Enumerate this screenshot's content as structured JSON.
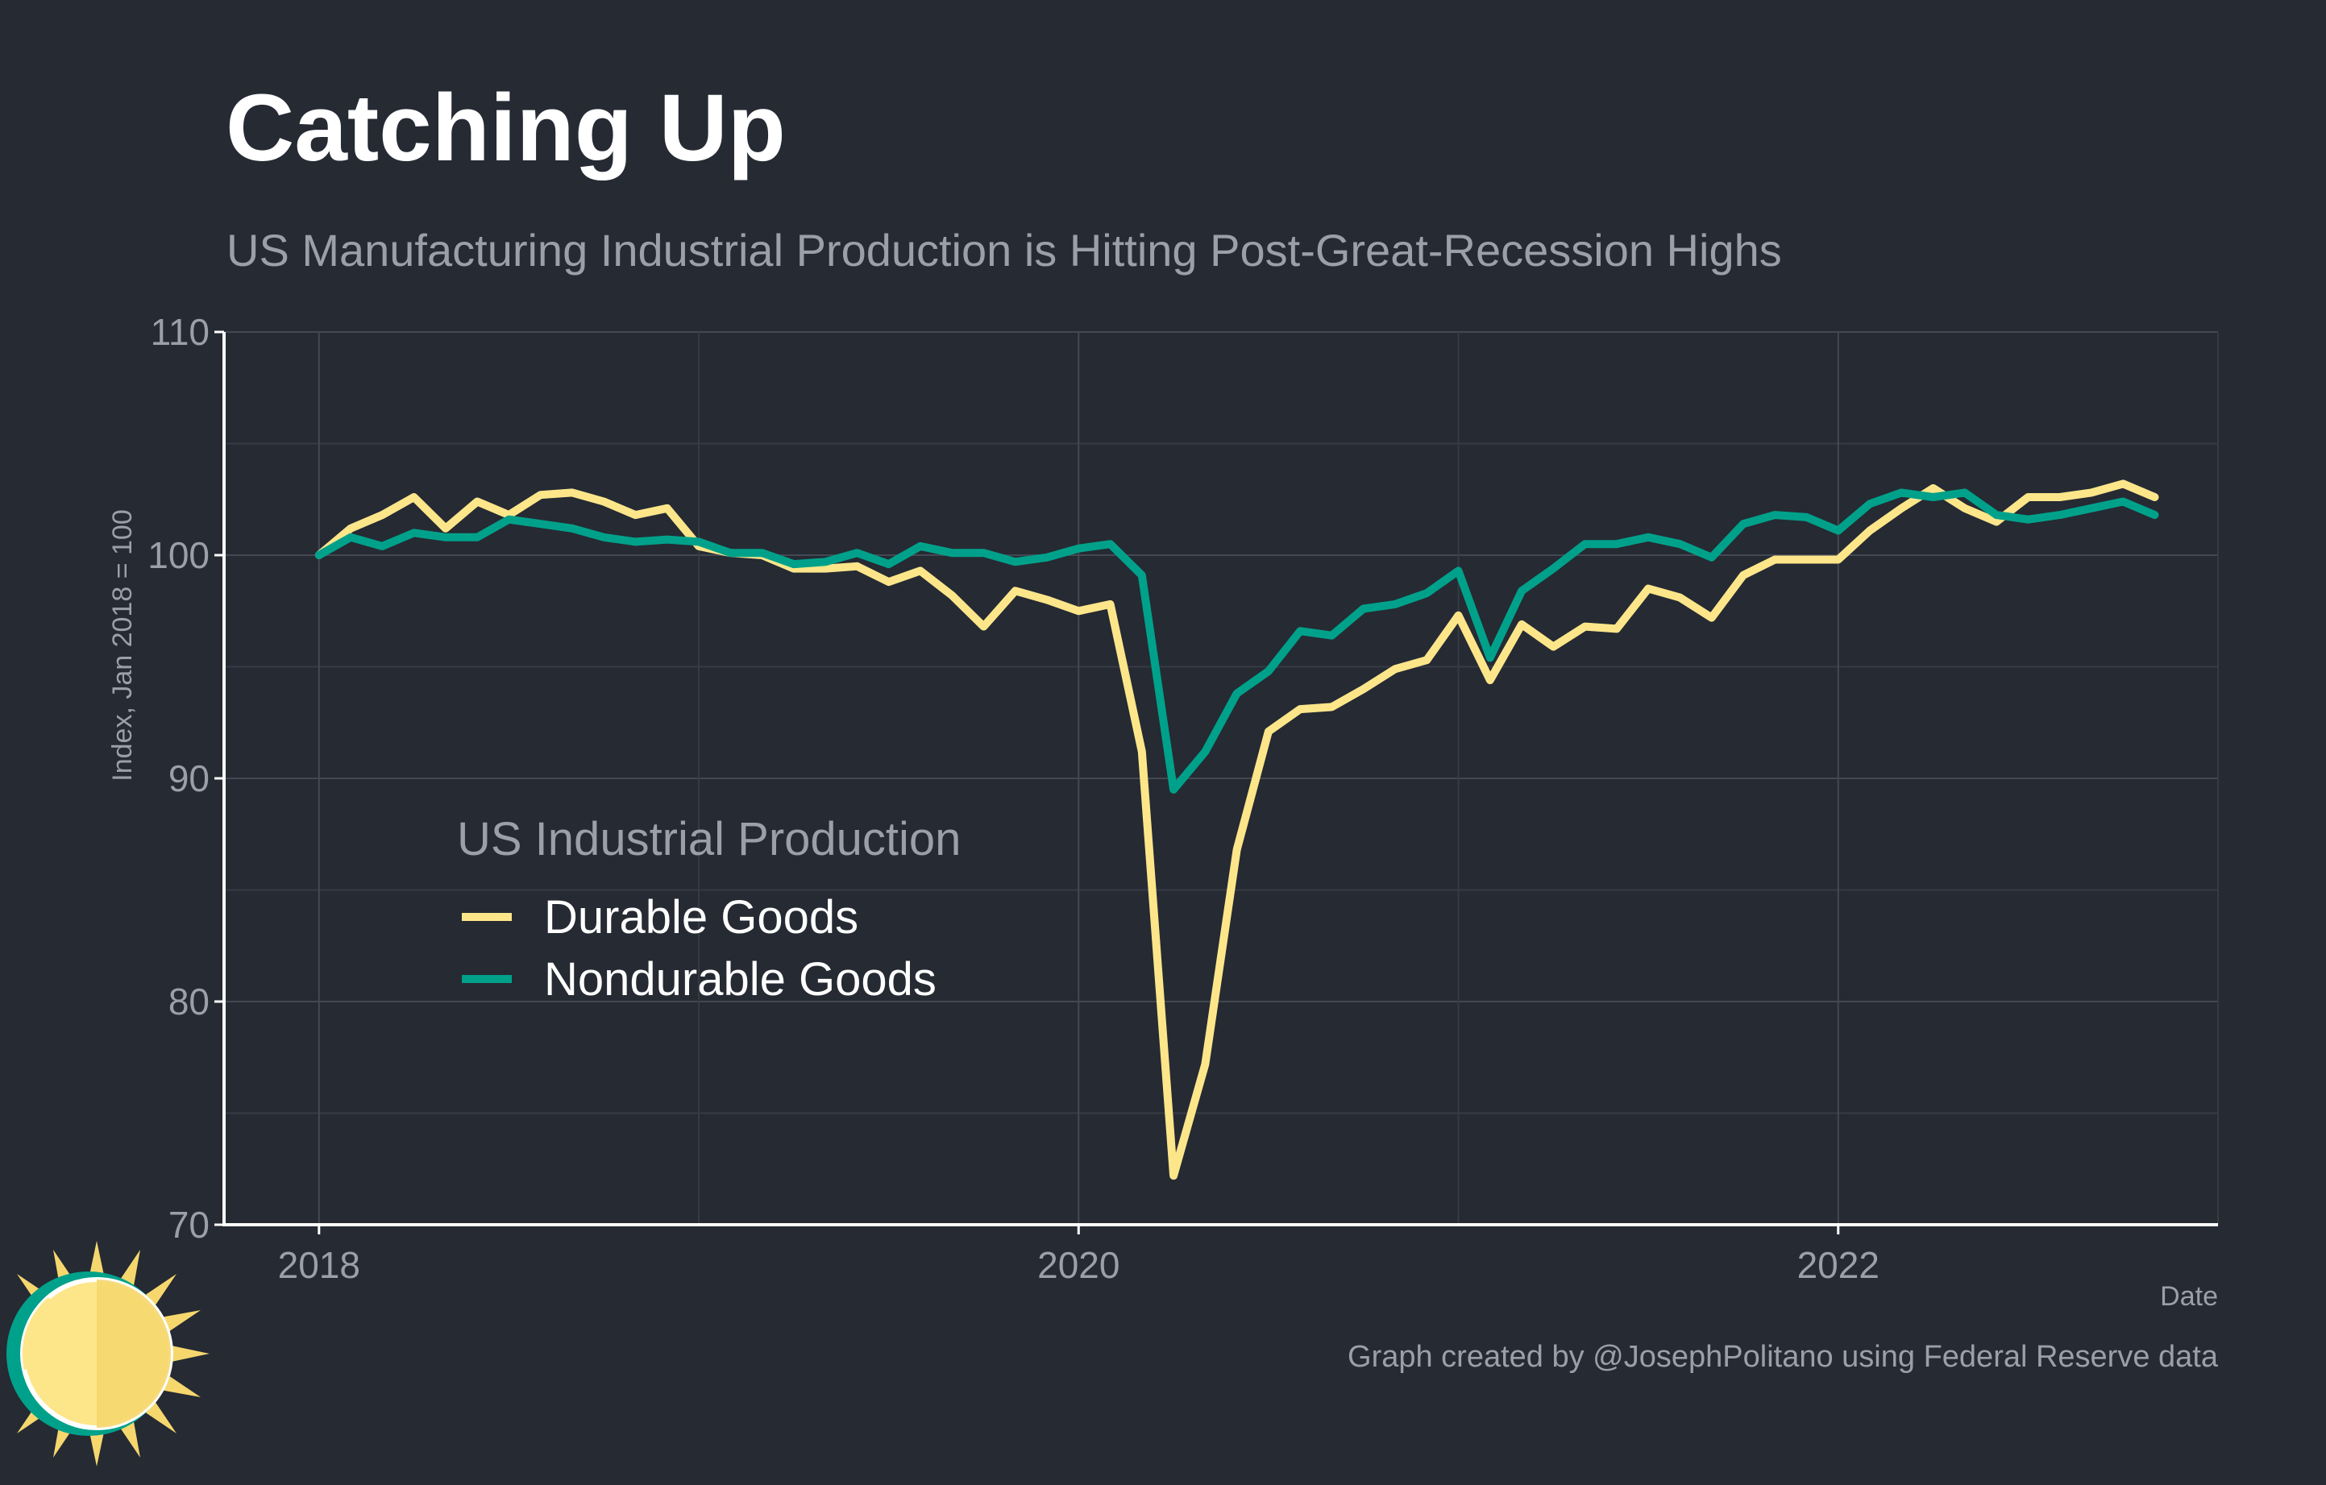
{
  "title": "Catching Up",
  "subtitle": "US Manufacturing Industrial Production is Hitting Post-Great-Recession Highs",
  "caption": "Graph created by @JosephPolitano using Federal Reserve data",
  "colors": {
    "background": "#252a33",
    "durable": "#fde68a",
    "nondurable": "#00a18a",
    "grid": "#3d424b",
    "axis": "#ffffff"
  },
  "chart_data": {
    "type": "line",
    "xlabel": "Date",
    "ylabel": "Index, Jan 2018 = 100",
    "ylim": [
      70,
      110
    ],
    "yticks": [
      70,
      80,
      90,
      100,
      110
    ],
    "xlim": [
      "2017-10",
      "2023-01"
    ],
    "xticks": [
      "2018",
      "2020",
      "2022"
    ],
    "grid": true,
    "legend": {
      "title": "US Industrial Production",
      "position": "lower-left"
    },
    "x": [
      "2018-01",
      "2018-02",
      "2018-03",
      "2018-04",
      "2018-05",
      "2018-06",
      "2018-07",
      "2018-08",
      "2018-09",
      "2018-10",
      "2018-11",
      "2018-12",
      "2019-01",
      "2019-02",
      "2019-03",
      "2019-04",
      "2019-05",
      "2019-06",
      "2019-07",
      "2019-08",
      "2019-09",
      "2019-10",
      "2019-11",
      "2019-12",
      "2020-01",
      "2020-02",
      "2020-03",
      "2020-04",
      "2020-05",
      "2020-06",
      "2020-07",
      "2020-08",
      "2020-09",
      "2020-10",
      "2020-11",
      "2020-12",
      "2021-01",
      "2021-02",
      "2021-03",
      "2021-04",
      "2021-05",
      "2021-06",
      "2021-07",
      "2021-08",
      "2021-09",
      "2021-10",
      "2021-11",
      "2021-12",
      "2022-01",
      "2022-02",
      "2022-03",
      "2022-04",
      "2022-05",
      "2022-06",
      "2022-07",
      "2022-08",
      "2022-09",
      "2022-10",
      "2022-11",
      "2022-12"
    ],
    "series": [
      {
        "name": "Durable Goods",
        "color": "#fde68a",
        "values": [
          100.0,
          101.2,
          101.8,
          102.6,
          101.2,
          102.4,
          101.8,
          102.7,
          102.8,
          102.4,
          101.8,
          102.1,
          100.4,
          100.1,
          100.0,
          99.4,
          99.4,
          99.5,
          98.8,
          99.3,
          98.2,
          96.8,
          98.4,
          98.0,
          97.5,
          97.8,
          91.2,
          72.2,
          77.2,
          86.8,
          92.1,
          93.1,
          93.2,
          94.0,
          94.9,
          95.3,
          97.3,
          94.4,
          96.9,
          95.9,
          96.8,
          96.7,
          98.5,
          98.1,
          97.2,
          99.1,
          99.8,
          99.8,
          99.8,
          101.1,
          102.1,
          103.0,
          102.1,
          101.5,
          102.6,
          102.6,
          102.8,
          103.2,
          102.6,
          null
        ]
      },
      {
        "name": "Nondurable Goods",
        "color": "#00a18a",
        "values": [
          100.0,
          100.8,
          100.4,
          101.0,
          100.8,
          100.8,
          101.6,
          101.4,
          101.2,
          100.8,
          100.6,
          100.7,
          100.6,
          100.1,
          100.1,
          99.6,
          99.7,
          100.1,
          99.6,
          100.4,
          100.1,
          100.1,
          99.7,
          99.9,
          100.3,
          100.5,
          99.1,
          89.5,
          91.2,
          93.8,
          94.8,
          96.6,
          96.4,
          97.6,
          97.8,
          98.3,
          99.3,
          95.4,
          98.4,
          99.4,
          100.5,
          100.5,
          100.8,
          100.5,
          99.9,
          101.4,
          101.8,
          101.7,
          101.1,
          102.3,
          102.8,
          102.6,
          102.8,
          101.8,
          101.6,
          101.8,
          102.1,
          102.4,
          101.8,
          null
        ]
      }
    ]
  }
}
